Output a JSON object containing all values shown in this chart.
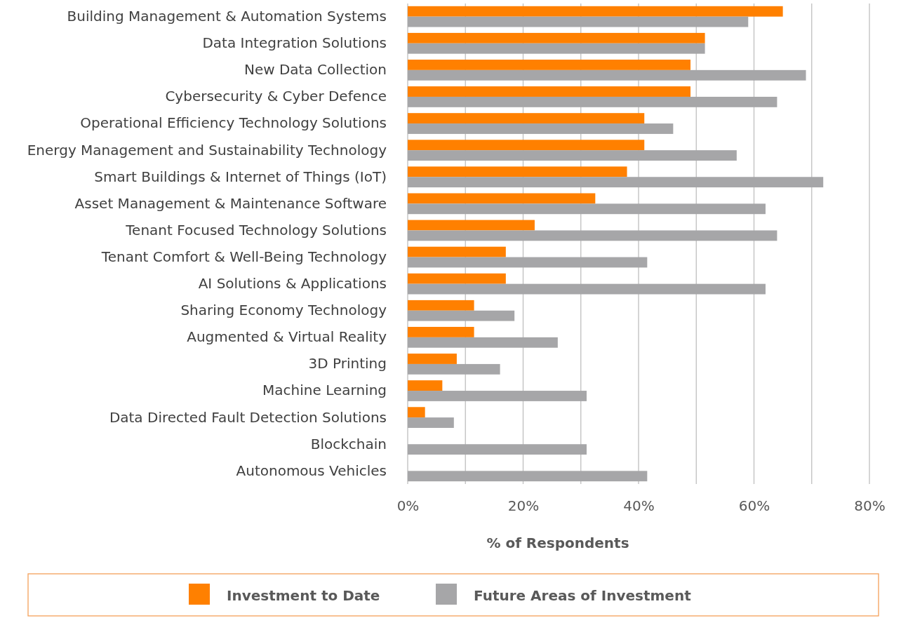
{
  "chart_data": {
    "type": "bar",
    "orientation": "horizontal",
    "xlabel": "% of Respondents",
    "categories": [
      "Building Management & Automation Systems",
      "Data Integration Solutions",
      "New Data Collection",
      "Cybersecurity & Cyber Defence",
      "Operational Efficiency Technology Solutions",
      "Energy Management and Sustainability Technology",
      "Smart Buildings & Internet of Things (IoT)",
      "Asset Management & Maintenance Software",
      "Tenant Focused Technology Solutions",
      "Tenant Comfort & Well-Being Technology",
      "AI Solutions & Applications",
      "Sharing Economy Technology",
      "Augmented & Virtual Reality",
      "3D Printing",
      "Machine Learning",
      "Data Directed Fault Detection Solutions",
      "Blockchain",
      "Autonomous Vehicles"
    ],
    "series": [
      {
        "name": "Investment to Date",
        "color": "#ff8000",
        "values": [
          65,
          51.5,
          49,
          49,
          41,
          41,
          38,
          32.5,
          22,
          17,
          17,
          11.5,
          11.5,
          8.5,
          6,
          3,
          0,
          0
        ]
      },
      {
        "name": "Future Areas of Investment",
        "color": "#a6a6a8",
        "values": [
          59,
          51.5,
          69,
          64,
          46,
          57,
          72,
          62,
          64,
          41.5,
          62,
          18.5,
          26,
          16,
          31,
          8,
          31,
          41.5
        ]
      }
    ],
    "xlim": [
      0,
      80
    ],
    "xticks": [
      {
        "value": 0,
        "label": "0%"
      },
      {
        "value": 10,
        "label": null
      },
      {
        "value": 20,
        "label": "20%"
      },
      {
        "value": 30,
        "label": null
      },
      {
        "value": 40,
        "label": "40%"
      },
      {
        "value": 50,
        "label": null
      },
      {
        "value": 60,
        "label": "60%"
      },
      {
        "value": 70,
        "label": null
      },
      {
        "value": 80,
        "label": "80%"
      }
    ],
    "grid": "x",
    "legend": "bottom"
  }
}
